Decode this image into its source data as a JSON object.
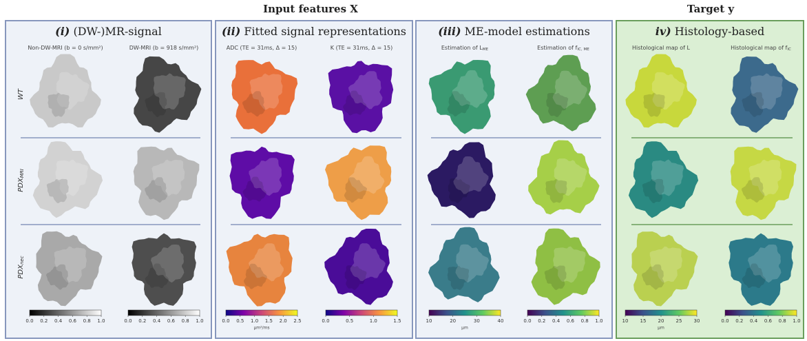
{
  "header": {
    "input_title": "Input features X",
    "target_title": "Target y"
  },
  "rows": [
    {
      "label": "WT"
    },
    {
      "label": "PDX",
      "sub": "MRI"
    },
    {
      "label": "PDX",
      "sub": "nec"
    }
  ],
  "panels": [
    {
      "label": "(i)",
      "title": "(DW-)MR-signal",
      "columns": [
        {
          "label": "Non-DW-MRI (b = 0 s/mm²)",
          "colorbar": {
            "ticks": [
              "0.0",
              "0.2",
              "0.4",
              "0.6",
              "0.8",
              "1.0"
            ]
          }
        },
        {
          "label": "DW-MRI (b = 918 s/mm²)",
          "colorbar": {
            "ticks": [
              "0.0",
              "0.2",
              "0.4",
              "0.6",
              "0.8",
              "1.0"
            ]
          }
        }
      ]
    },
    {
      "label": "(ii)",
      "title": "Fitted signal representations",
      "columns": [
        {
          "label": "ADC (TE = 31ms, Δ = 15)",
          "colorbar": {
            "ticks": [
              "0.0",
              "0.5",
              "1.0",
              "1.5",
              "2.0",
              "2.5"
            ],
            "unit": "µm²/ms"
          }
        },
        {
          "label": "K (TE = 31ms, Δ = 15)",
          "colorbar": {
            "ticks": [
              "0.0",
              "0.5",
              "1.0",
              "1.5"
            ]
          }
        }
      ]
    },
    {
      "label": "(iii)",
      "title": "ME-model estimations",
      "columns": [
        {
          "label": "Estimation of L",
          "sub": "ME",
          "colorbar": {
            "ticks": [
              "10",
              "20",
              "30",
              "40"
            ],
            "unit": "µm"
          }
        },
        {
          "label": "Estimation of f",
          "sub": "IC, ME",
          "colorbar": {
            "ticks": [
              "0.0",
              "0.2",
              "0.4",
              "0.6",
              "0.8",
              "1.0"
            ]
          }
        }
      ]
    },
    {
      "label": "iv)",
      "title": "Histology-based",
      "columns": [
        {
          "label": "Histological map of L",
          "colorbar": {
            "ticks": [
              "10",
              "15",
              "20",
              "25",
              "30"
            ],
            "unit": "µm"
          }
        },
        {
          "label": "Histological map of f",
          "sub": "IC",
          "colorbar": {
            "ticks": [
              "0.0",
              "0.2",
              "0.4",
              "0.6",
              "0.8",
              "1.0"
            ]
          }
        }
      ]
    }
  ]
}
